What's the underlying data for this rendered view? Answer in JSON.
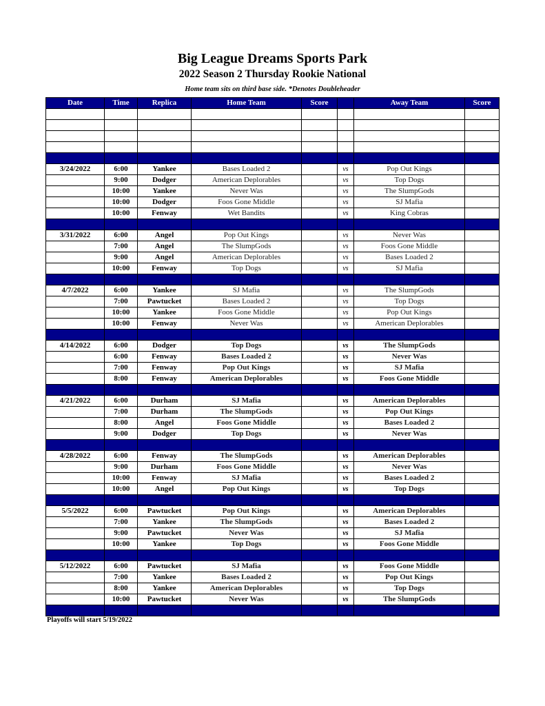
{
  "header": {
    "title": "Big League Dreams Sports Park",
    "subtitle": "2022 Season 2 Thursday Rookie National",
    "note": "Home team sits on third base side.  *Denotes Doubleheader"
  },
  "columns": [
    "Date",
    "Time",
    "Replica",
    "Home Team",
    "Score",
    "",
    "Away Team",
    "Score"
  ],
  "vs_label": "vs",
  "weeks": [
    {
      "date": "3/24/2022",
      "games": [
        [
          "6:00",
          "Yankee",
          "Bases Loaded 2",
          "Pop Out Kings"
        ],
        [
          "9:00",
          "Dodger",
          "American Deplorables",
          "Top Dogs"
        ],
        [
          "10:00",
          "Yankee",
          "Never Was",
          "The SlumpGods"
        ],
        [
          "10:00",
          "Dodger",
          "Foos Gone Middle",
          "SJ Mafia"
        ],
        [
          "10:00",
          "Fenway",
          "Wet Bandits",
          "King Cobras"
        ]
      ]
    },
    {
      "date": "3/31/2022",
      "games": [
        [
          "6:00",
          "Angel",
          "Pop Out Kings",
          "Never Was"
        ],
        [
          "7:00",
          "Angel",
          "The SlumpGods",
          "Foos Gone Middle"
        ],
        [
          "9:00",
          "Angel",
          "American Deplorables",
          "Bases Loaded 2"
        ],
        [
          "10:00",
          "Fenway",
          "Top Dogs",
          "SJ Mafia"
        ]
      ]
    },
    {
      "date": "4/7/2022",
      "games": [
        [
          "6:00",
          "Yankee",
          "SJ Mafia",
          "The SlumpGods"
        ],
        [
          "7:00",
          "Pawtucket",
          "Bases Loaded 2",
          "Top Dogs"
        ],
        [
          "10:00",
          "Yankee",
          "Foos Gone Middle",
          "Pop Out Kings"
        ],
        [
          "10:00",
          "Fenway",
          "Never Was",
          "American Deplorables"
        ]
      ]
    },
    {
      "date": "4/14/2022",
      "games": [
        [
          "6:00",
          "Dodger",
          "Top Dogs",
          "The SlumpGods"
        ],
        [
          "6:00",
          "Fenway",
          "Bases Loaded 2",
          "Never Was"
        ],
        [
          "7:00",
          "Fenway",
          "Pop Out Kings",
          "SJ Mafia"
        ],
        [
          "8:00",
          "Fenway",
          "American Deplorables",
          "Foos Gone Middle"
        ]
      ]
    },
    {
      "date": "4/21/2022",
      "games": [
        [
          "6:00",
          "Durham",
          "SJ Mafia",
          "American Deplorables"
        ],
        [
          "7:00",
          "Durham",
          "The SlumpGods",
          "Pop Out Kings"
        ],
        [
          "8:00",
          "Angel",
          "Foos Gone Middle",
          "Bases Loaded 2"
        ],
        [
          "9:00",
          "Dodger",
          "Top Dogs",
          "Never Was"
        ]
      ]
    },
    {
      "date": "4/28/2022",
      "games": [
        [
          "6:00",
          "Fenway",
          "The SlumpGods",
          "American Deplorables"
        ],
        [
          "9:00",
          "Durham",
          "Foos Gone Middle",
          "Never Was"
        ],
        [
          "10:00",
          "Fenway",
          "SJ Mafia",
          "Bases Loaded 2"
        ],
        [
          "10:00",
          "Angel",
          "Pop Out Kings",
          "Top Dogs"
        ]
      ]
    },
    {
      "date": "5/5/2022",
      "games": [
        [
          "6:00",
          "Pawtucket",
          "Pop Out Kings",
          "American Deplorables"
        ],
        [
          "7:00",
          "Yankee",
          "The SlumpGods",
          "Bases Loaded 2"
        ],
        [
          "9:00",
          "Pawtucket",
          "Never Was",
          "SJ Mafia"
        ],
        [
          "10:00",
          "Yankee",
          "Top Dogs",
          "Foos Gone Middle"
        ]
      ]
    },
    {
      "date": "5/12/2022",
      "games": [
        [
          "6:00",
          "Pawtucket",
          "SJ Mafia",
          "Foos Gone Middle"
        ],
        [
          "7:00",
          "Yankee",
          "Bases Loaded 2",
          "Pop Out Kings"
        ],
        [
          "8:00",
          "Yankee",
          "American Deplorables",
          "Top Dogs"
        ],
        [
          "10:00",
          "Pawtucket",
          "Never Was",
          "The SlumpGods"
        ]
      ]
    }
  ],
  "footer": "Playoffs will start 5/19/2022"
}
